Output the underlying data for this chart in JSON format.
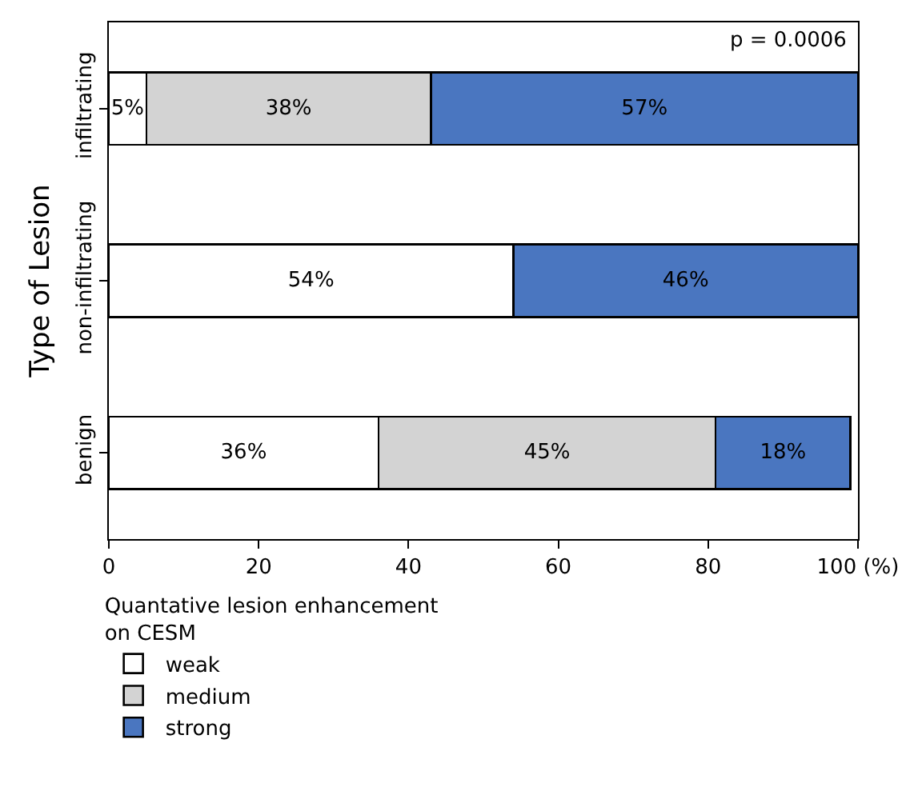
{
  "chart_data": {
    "type": "bar",
    "orientation": "horizontal",
    "stacked": true,
    "ylabel": "Type of Lesion",
    "legend_title": "Quantative lesion enhancement on CESM",
    "categories": [
      "infiltrating",
      "non-infiltrating",
      "benign"
    ],
    "series": [
      {
        "name": "weak",
        "color": "#ffffff",
        "values": [
          5,
          54,
          36
        ],
        "value_labels": [
          "5%",
          "54%",
          "36%"
        ]
      },
      {
        "name": "medium",
        "color": "#d3d3d3",
        "values": [
          38,
          null,
          45
        ],
        "value_labels": [
          "38%",
          null,
          "45%"
        ]
      },
      {
        "name": "strong",
        "color": "#4a76c0",
        "values": [
          57,
          46,
          18
        ],
        "value_labels": [
          "57%",
          "46%",
          "18%"
        ]
      }
    ],
    "xlim": [
      0,
      100
    ],
    "xticks": [
      0,
      20,
      40,
      60,
      80,
      {
        "value": 100,
        "label": "100 (%)"
      }
    ],
    "legend": "bottom left",
    "annotations": [
      "p = 0.0006"
    ]
  }
}
